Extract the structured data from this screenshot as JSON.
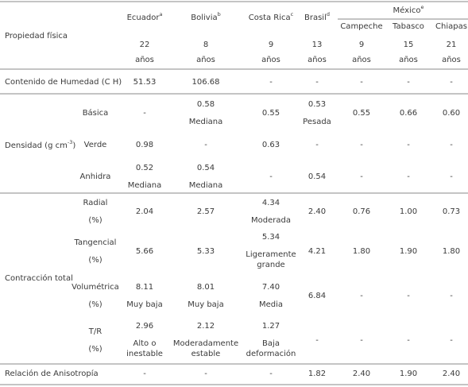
{
  "header": {
    "property": "Propiedad física",
    "columns": [
      {
        "name": "Ecuador",
        "note": "a"
      },
      {
        "name": "Bolivia",
        "note": "b"
      },
      {
        "name": "Costa Rica",
        "note": "c"
      },
      {
        "name": "Brasil",
        "note": "d"
      }
    ],
    "group": {
      "name": "México",
      "note": "e",
      "columns": [
        "Campeche",
        "Tabasco",
        "Chiapas"
      ]
    },
    "years": [
      [
        "22",
        "años"
      ],
      [
        "8",
        "años"
      ],
      [
        "9",
        "años"
      ],
      [
        "13",
        "años"
      ],
      [
        "9",
        "años"
      ],
      [
        "15",
        "años"
      ],
      [
        "21",
        "años"
      ]
    ]
  },
  "rows": [
    {
      "label": "Contenido de Humedad (C H)",
      "cells": [
        [
          "51.53"
        ],
        [
          "106.68"
        ],
        [
          "-"
        ],
        [
          "-"
        ],
        [
          "-"
        ],
        [
          "-"
        ],
        [
          "-"
        ]
      ]
    },
    {
      "label": "Densidad (g cm",
      "label_sup": "-3",
      "label_end": ")",
      "subrows": [
        {
          "label": [
            "Básica"
          ],
          "cells": [
            [
              "-"
            ],
            [
              "0.58",
              "Mediana"
            ],
            [
              "0.55"
            ],
            [
              "0.53",
              "Pesada"
            ],
            [
              "0.55"
            ],
            [
              "0.66"
            ],
            [
              "0.60"
            ]
          ]
        },
        {
          "label": [
            "Verde"
          ],
          "cells": [
            [
              "0.98"
            ],
            [
              "-"
            ],
            [
              "0.63"
            ],
            [
              "-"
            ],
            [
              "-"
            ],
            [
              "-"
            ],
            [
              "-"
            ]
          ]
        },
        {
          "label": [
            "Anhidra"
          ],
          "cells": [
            [
              "0.52",
              "Mediana"
            ],
            [
              "0.54",
              "Mediana"
            ],
            [
              "-"
            ],
            [
              "0.54"
            ],
            [
              "-"
            ],
            [
              "-"
            ],
            [
              "-"
            ]
          ]
        }
      ]
    },
    {
      "label": "Contracción total",
      "subrows": [
        {
          "label": [
            "Radial",
            "(%)"
          ],
          "cells": [
            [
              "2.04"
            ],
            [
              "2.57"
            ],
            [
              "4.34",
              "Moderada"
            ],
            [
              "2.40"
            ],
            [
              "0.76"
            ],
            [
              "1.00"
            ],
            [
              "0.73"
            ]
          ]
        },
        {
          "label": [
            "Tangencial",
            "(%)"
          ],
          "cells": [
            [
              "5.66"
            ],
            [
              "5.33"
            ],
            [
              "5.34",
              "Ligeramente",
              "grande"
            ],
            [
              "4.21"
            ],
            [
              "1.80"
            ],
            [
              "1.90"
            ],
            [
              "1.80"
            ]
          ]
        },
        {
          "label": [
            "Volumétrica",
            "(%)"
          ],
          "cells": [
            [
              "8.11",
              "Muy baja"
            ],
            [
              "8.01",
              "Muy baja"
            ],
            [
              "7.40",
              "Media"
            ],
            [
              "6.84"
            ],
            [
              "-"
            ],
            [
              "-"
            ],
            [
              "-"
            ]
          ]
        },
        {
          "label": [
            "T/R",
            "(%)"
          ],
          "cells": [
            [
              "2.96",
              "Alto o",
              "inestable"
            ],
            [
              "2.12",
              "Moderadamente",
              "estable"
            ],
            [
              "1.27",
              "Baja",
              "deformación"
            ],
            [
              "-"
            ],
            [
              "-"
            ],
            [
              "-"
            ],
            [
              "-"
            ]
          ]
        }
      ]
    },
    {
      "label": "Relación de Anisotropía",
      "cells": [
        [
          "-"
        ],
        [
          "-"
        ],
        [
          "-"
        ],
        [
          "1.82"
        ],
        [
          "2.40"
        ],
        [
          "1.90"
        ],
        [
          "2.40"
        ]
      ]
    }
  ]
}
